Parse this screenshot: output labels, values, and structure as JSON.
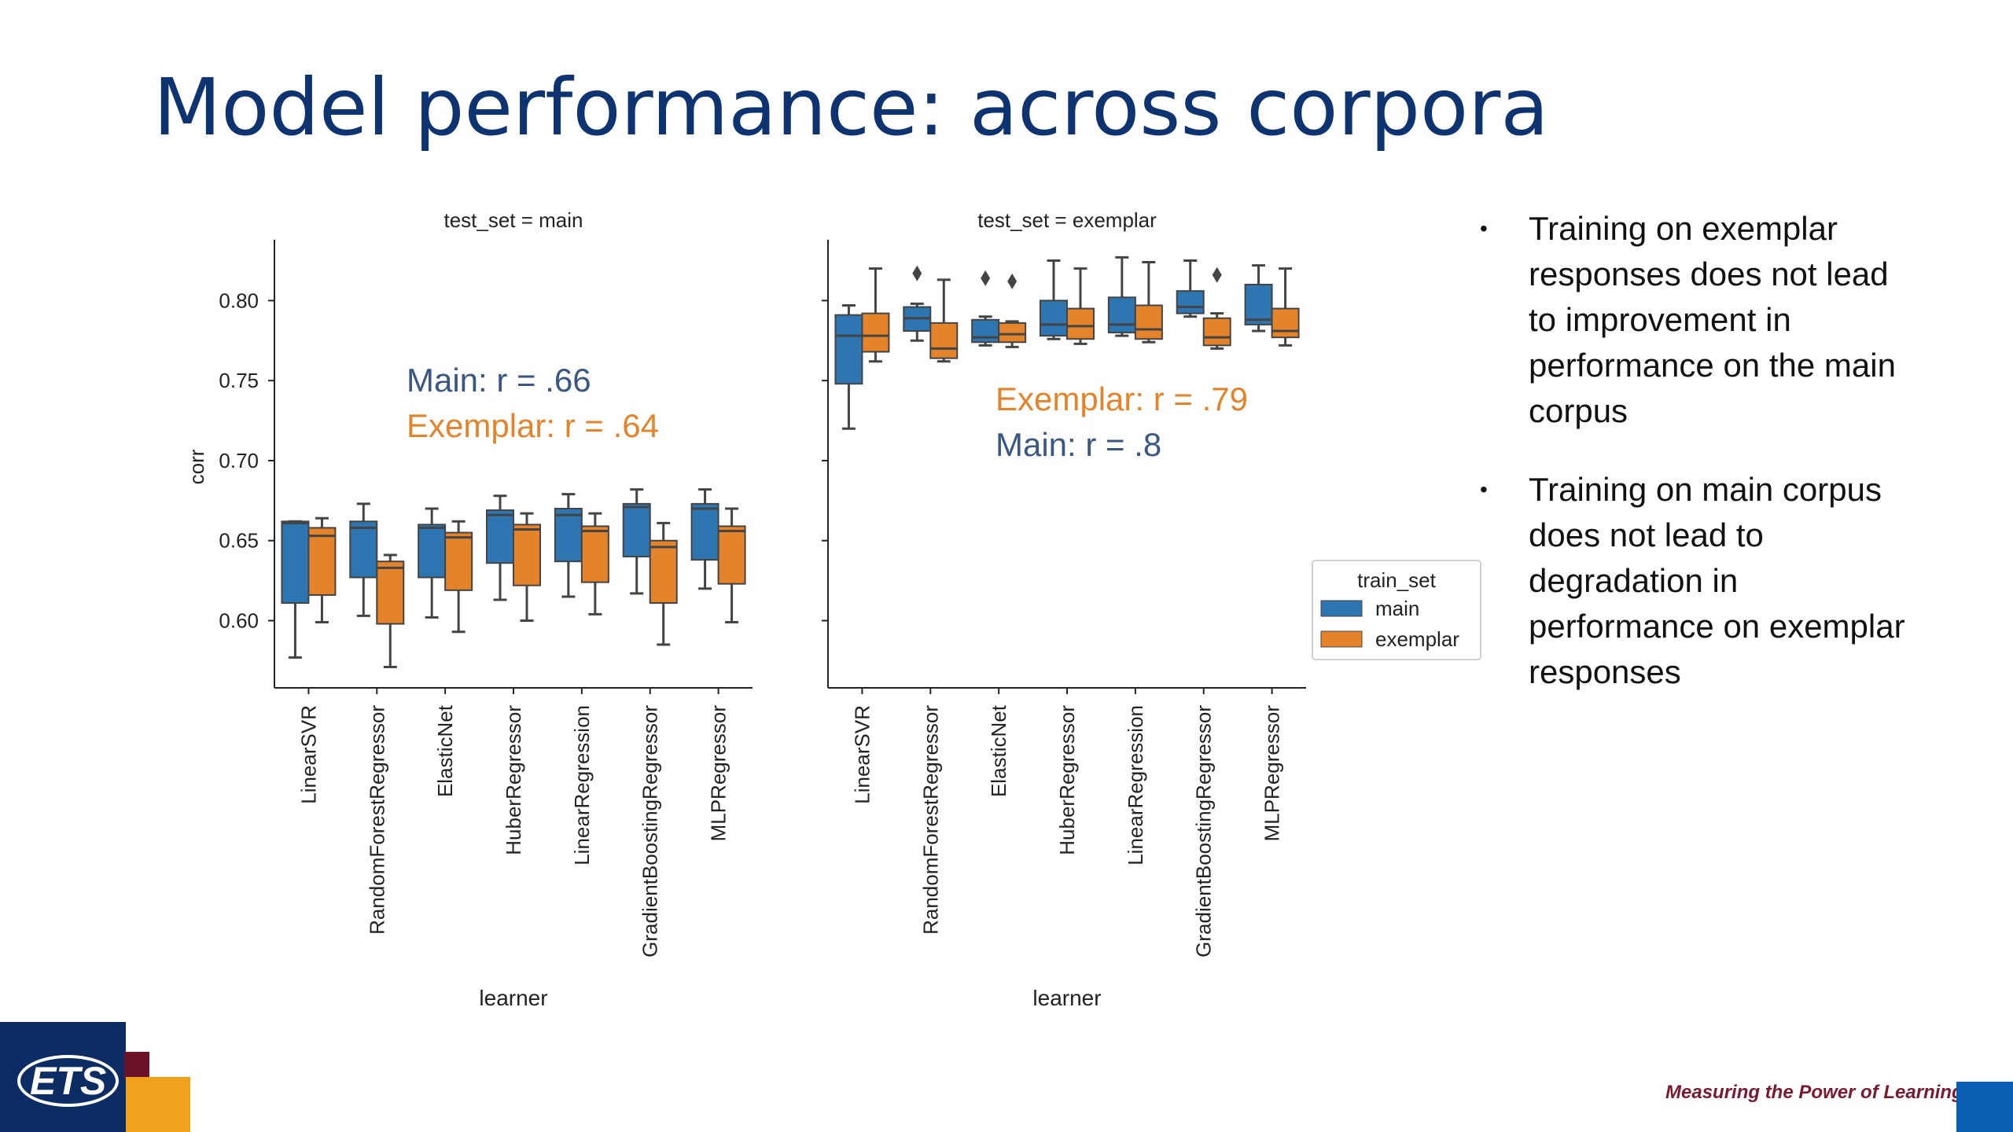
{
  "slide": {
    "title": "Model performance: across corpora",
    "tagline": "Measuring the Power of Learning.",
    "logo": "ETS"
  },
  "bullets": [
    "Training on exemplar responses does not lead to improvement in performance on the main corpus",
    "Training on main corpus does not lead to degradation in performance on exemplar responses"
  ],
  "colors": {
    "main": "#2e76b1",
    "exemplar": "#e5832b",
    "title": "#0d3370",
    "annot_main": "#3a5683",
    "annot_exemplar": "#e5832b"
  },
  "chart_data": {
    "type": "box",
    "ylabel": "corr",
    "xlabel": "learner",
    "ylim": [
      0.558,
      0.838
    ],
    "yticks": [
      "0.60",
      "0.65",
      "0.70",
      "0.75",
      "0.80"
    ],
    "categories": [
      "LinearSVR",
      "RandomForestRegressor",
      "ElasticNet",
      "HuberRegressor",
      "LinearRegression",
      "GradientBoostingRegressor",
      "MLPRegressor"
    ],
    "legend": {
      "title": "train_set",
      "entries": [
        "main",
        "exemplar"
      ],
      "placement": "right"
    },
    "panels": [
      {
        "title": "test_set = main",
        "annotations": [
          {
            "text": "Main: r = .66",
            "series": "main"
          },
          {
            "text": "Exemplar: r = .64",
            "series": "exemplar"
          }
        ],
        "series": [
          {
            "name": "main",
            "boxes": [
              {
                "whislo": 0.577,
                "q1": 0.611,
                "med": 0.661,
                "q3": 0.662,
                "whishi": 0.662,
                "fliers": []
              },
              {
                "whislo": 0.603,
                "q1": 0.627,
                "med": 0.658,
                "q3": 0.662,
                "whishi": 0.673,
                "fliers": []
              },
              {
                "whislo": 0.602,
                "q1": 0.627,
                "med": 0.658,
                "q3": 0.66,
                "whishi": 0.67,
                "fliers": []
              },
              {
                "whislo": 0.613,
                "q1": 0.636,
                "med": 0.666,
                "q3": 0.669,
                "whishi": 0.678,
                "fliers": []
              },
              {
                "whislo": 0.615,
                "q1": 0.637,
                "med": 0.666,
                "q3": 0.67,
                "whishi": 0.679,
                "fliers": []
              },
              {
                "whislo": 0.617,
                "q1": 0.64,
                "med": 0.671,
                "q3": 0.673,
                "whishi": 0.682,
                "fliers": []
              },
              {
                "whislo": 0.62,
                "q1": 0.638,
                "med": 0.67,
                "q3": 0.673,
                "whishi": 0.682,
                "fliers": []
              }
            ]
          },
          {
            "name": "exemplar",
            "boxes": [
              {
                "whislo": 0.599,
                "q1": 0.616,
                "med": 0.653,
                "q3": 0.658,
                "whishi": 0.664,
                "fliers": []
              },
              {
                "whislo": 0.571,
                "q1": 0.598,
                "med": 0.633,
                "q3": 0.637,
                "whishi": 0.641,
                "fliers": []
              },
              {
                "whislo": 0.593,
                "q1": 0.619,
                "med": 0.652,
                "q3": 0.655,
                "whishi": 0.662,
                "fliers": []
              },
              {
                "whislo": 0.6,
                "q1": 0.622,
                "med": 0.657,
                "q3": 0.66,
                "whishi": 0.667,
                "fliers": []
              },
              {
                "whislo": 0.604,
                "q1": 0.624,
                "med": 0.656,
                "q3": 0.659,
                "whishi": 0.667,
                "fliers": []
              },
              {
                "whislo": 0.585,
                "q1": 0.611,
                "med": 0.646,
                "q3": 0.65,
                "whishi": 0.661,
                "fliers": []
              },
              {
                "whislo": 0.599,
                "q1": 0.623,
                "med": 0.656,
                "q3": 0.659,
                "whishi": 0.67,
                "fliers": []
              }
            ]
          }
        ]
      },
      {
        "title": "test_set = exemplar",
        "annotations": [
          {
            "text": "Exemplar: r = .79",
            "series": "exemplar"
          },
          {
            "text": "Main: r = .8",
            "series": "main"
          }
        ],
        "series": [
          {
            "name": "main",
            "boxes": [
              {
                "whislo": 0.72,
                "q1": 0.748,
                "med": 0.778,
                "q3": 0.791,
                "whishi": 0.797,
                "fliers": []
              },
              {
                "whislo": 0.775,
                "q1": 0.781,
                "med": 0.789,
                "q3": 0.796,
                "whishi": 0.798,
                "fliers": [
                  0.817
                ]
              },
              {
                "whislo": 0.772,
                "q1": 0.774,
                "med": 0.777,
                "q3": 0.788,
                "whishi": 0.79,
                "fliers": [
                  0.814
                ]
              },
              {
                "whislo": 0.776,
                "q1": 0.778,
                "med": 0.785,
                "q3": 0.8,
                "whishi": 0.825,
                "fliers": []
              },
              {
                "whislo": 0.778,
                "q1": 0.78,
                "med": 0.785,
                "q3": 0.802,
                "whishi": 0.827,
                "fliers": []
              },
              {
                "whislo": 0.79,
                "q1": 0.792,
                "med": 0.796,
                "q3": 0.806,
                "whishi": 0.825,
                "fliers": []
              },
              {
                "whislo": 0.781,
                "q1": 0.785,
                "med": 0.788,
                "q3": 0.81,
                "whishi": 0.822,
                "fliers": []
              }
            ]
          },
          {
            "name": "exemplar",
            "boxes": [
              {
                "whislo": 0.762,
                "q1": 0.768,
                "med": 0.778,
                "q3": 0.792,
                "whishi": 0.82,
                "fliers": []
              },
              {
                "whislo": 0.762,
                "q1": 0.764,
                "med": 0.77,
                "q3": 0.786,
                "whishi": 0.813,
                "fliers": []
              },
              {
                "whislo": 0.771,
                "q1": 0.774,
                "med": 0.779,
                "q3": 0.786,
                "whishi": 0.787,
                "fliers": [
                  0.812
                ]
              },
              {
                "whislo": 0.773,
                "q1": 0.776,
                "med": 0.784,
                "q3": 0.795,
                "whishi": 0.82,
                "fliers": []
              },
              {
                "whislo": 0.774,
                "q1": 0.776,
                "med": 0.782,
                "q3": 0.797,
                "whishi": 0.824,
                "fliers": []
              },
              {
                "whislo": 0.77,
                "q1": 0.772,
                "med": 0.777,
                "q3": 0.789,
                "whishi": 0.792,
                "fliers": [
                  0.816
                ]
              },
              {
                "whislo": 0.772,
                "q1": 0.777,
                "med": 0.781,
                "q3": 0.795,
                "whishi": 0.82,
                "fliers": []
              }
            ]
          }
        ]
      }
    ]
  }
}
